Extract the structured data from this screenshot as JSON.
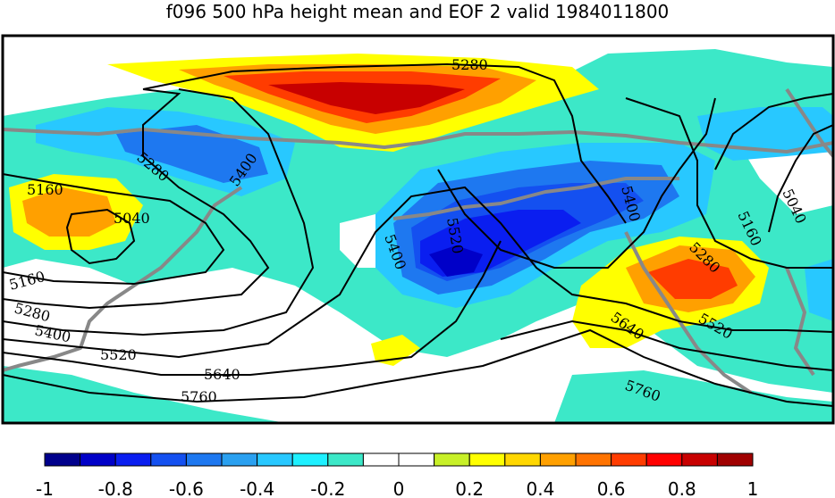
{
  "title": "f096 500 hPa height mean and EOF 2 valid 1984011800",
  "colorbar": {
    "colors": [
      "#00008c",
      "#0000c8",
      "#0a1ef0",
      "#1450f0",
      "#1e78f0",
      "#2aa0f0",
      "#28c8ff",
      "#1ef0ff",
      "#3ce8c8",
      "#ffffff",
      "#ffffff",
      "#c8f028",
      "#ffff00",
      "#ffd700",
      "#ffa000",
      "#ff7300",
      "#ff3c00",
      "#ff0000",
      "#c80000",
      "#a00000"
    ],
    "tick_labels": [
      "-1",
      "-0.8",
      "-0.6",
      "-0.4",
      "-0.2",
      "0",
      "0.2",
      "0.4",
      "0.6",
      "0.8",
      "1"
    ]
  },
  "contour_labels": [
    "5280",
    "5280",
    "5400",
    "5160",
    "5040",
    "5400",
    "5520",
    "5400",
    "5160",
    "5040",
    "5280",
    "5160",
    "5280",
    "5400",
    "5520",
    "5640",
    "5760",
    "5640",
    "5520",
    "5760"
  ],
  "chart_data": {
    "type": "heatmap",
    "title": "f096 500 hPa height mean and EOF 2 valid 1984011800",
    "field": "EOF 2 (shaded)",
    "color_range": [
      -1,
      1
    ],
    "colorbar_ticks": [
      -1,
      -0.8,
      -0.6,
      -0.4,
      -0.2,
      0,
      0.2,
      0.4,
      0.6,
      0.8,
      1
    ],
    "contour_field": "500 hPa height mean",
    "contour_levels": [
      5040,
      5160,
      5280,
      5400,
      5520,
      5640,
      5760
    ]
  }
}
